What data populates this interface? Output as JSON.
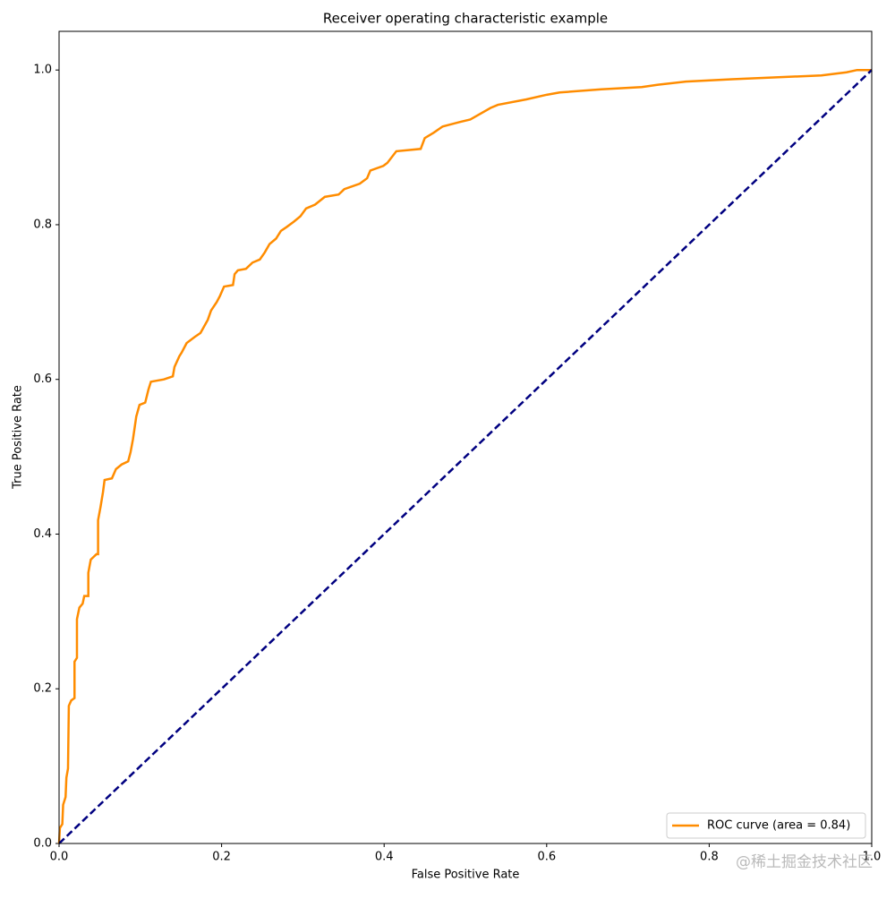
{
  "chart_data": {
    "type": "line",
    "title": "Receiver operating characteristic example",
    "xlabel": "False Positive Rate",
    "ylabel": "True Positive Rate",
    "xlim": [
      0,
      1
    ],
    "ylim": [
      0,
      1.05
    ],
    "xticks": [
      {
        "value": 0,
        "label": "0.0"
      },
      0.2,
      0.4,
      0.6,
      0.8,
      {
        "value": 1,
        "label": "1.0"
      }
    ],
    "yticks": [
      {
        "value": 0,
        "label": "0.0"
      },
      0.2,
      0.4,
      0.6,
      0.8,
      {
        "value": 1,
        "label": "1.0"
      }
    ],
    "legend": "lower right",
    "series": [
      {
        "name": "ROC curve (area = 0.84)",
        "color": "#ff8c00",
        "dash": false,
        "x": [
          0,
          0.001,
          0.004,
          0.005,
          0.008,
          0.009,
          0.011,
          0.012,
          0.015,
          0.019,
          0.019,
          0.022,
          0.022,
          0.025,
          0.029,
          0.031,
          0.036,
          0.036,
          0.039,
          0.042,
          0.046,
          0.048,
          0.048,
          0.051,
          0.054,
          0.056,
          0.065,
          0.07,
          0.077,
          0.085,
          0.088,
          0.091,
          0.095,
          0.099,
          0.106,
          0.11,
          0.113,
          0.129,
          0.14,
          0.142,
          0.148,
          0.151,
          0.157,
          0.167,
          0.174,
          0.183,
          0.187,
          0.194,
          0.198,
          0.203,
          0.214,
          0.216,
          0.22,
          0.23,
          0.238,
          0.247,
          0.253,
          0.259,
          0.267,
          0.273,
          0.28,
          0.289,
          0.297,
          0.304,
          0.315,
          0.327,
          0.344,
          0.351,
          0.37,
          0.379,
          0.383,
          0.399,
          0.404,
          0.415,
          0.445,
          0.45,
          0.461,
          0.472,
          0.494,
          0.506,
          0.531,
          0.54,
          0.575,
          0.6,
          0.616,
          0.667,
          0.717,
          0.737,
          0.771,
          0.828,
          0.938,
          0.969,
          0.982,
          1.0
        ],
        "values": [
          0,
          0.02,
          0.025,
          0.05,
          0.06,
          0.085,
          0.097,
          0.178,
          0.185,
          0.188,
          0.235,
          0.24,
          0.29,
          0.305,
          0.31,
          0.32,
          0.32,
          0.35,
          0.367,
          0.37,
          0.374,
          0.374,
          0.418,
          0.435,
          0.454,
          0.47,
          0.472,
          0.484,
          0.49,
          0.494,
          0.506,
          0.523,
          0.552,
          0.567,
          0.57,
          0.587,
          0.597,
          0.6,
          0.604,
          0.616,
          0.63,
          0.635,
          0.647,
          0.655,
          0.66,
          0.677,
          0.689,
          0.7,
          0.708,
          0.72,
          0.722,
          0.736,
          0.741,
          0.743,
          0.751,
          0.755,
          0.764,
          0.775,
          0.782,
          0.792,
          0.797,
          0.804,
          0.811,
          0.821,
          0.826,
          0.836,
          0.839,
          0.846,
          0.853,
          0.86,
          0.87,
          0.876,
          0.88,
          0.895,
          0.898,
          0.912,
          0.919,
          0.927,
          0.933,
          0.936,
          0.951,
          0.955,
          0.962,
          0.968,
          0.971,
          0.975,
          0.978,
          0.981,
          0.985,
          0.988,
          0.993,
          0.997,
          1.0,
          1.0
        ]
      },
      {
        "color": "#000080",
        "dash": true,
        "x": [
          0,
          1
        ],
        "values": [
          0,
          1
        ]
      }
    ],
    "watermark": "@稀土掘金技术社区"
  }
}
